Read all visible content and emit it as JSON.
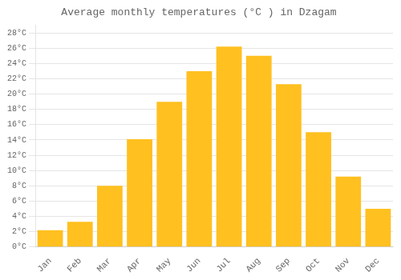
{
  "chart_data": {
    "type": "bar",
    "title": "Average monthly temperatures (°C ) in Dzagam",
    "categories": [
      "Jan",
      "Feb",
      "Mar",
      "Apr",
      "May",
      "Jun",
      "Jul",
      "Aug",
      "Sep",
      "Oct",
      "Nov",
      "Dec"
    ],
    "values": [
      2.2,
      3.3,
      8.0,
      14.1,
      19.0,
      23.0,
      26.2,
      25.0,
      21.3,
      15.0,
      9.2,
      5.0
    ],
    "color": "#FFC020",
    "ylim": [
      0,
      29
    ],
    "yticks": [
      {
        "value": 0,
        "label": "0°C"
      },
      {
        "value": 2,
        "label": "2°C"
      },
      {
        "value": 4,
        "label": "4°C"
      },
      {
        "value": 6,
        "label": "6°C"
      },
      {
        "value": 8,
        "label": "8°C"
      },
      {
        "value": 10,
        "label": "10°C"
      },
      {
        "value": 12,
        "label": "12°C"
      },
      {
        "value": 14,
        "label": "14°C"
      },
      {
        "value": 16,
        "label": "16°C"
      },
      {
        "value": 18,
        "label": "18°C"
      },
      {
        "value": 20,
        "label": "20°C"
      },
      {
        "value": 22,
        "label": "22°C"
      },
      {
        "value": 24,
        "label": "24°C"
      },
      {
        "value": 26,
        "label": "26°C"
      },
      {
        "value": 28,
        "label": "28°C"
      }
    ],
    "grid": true
  }
}
